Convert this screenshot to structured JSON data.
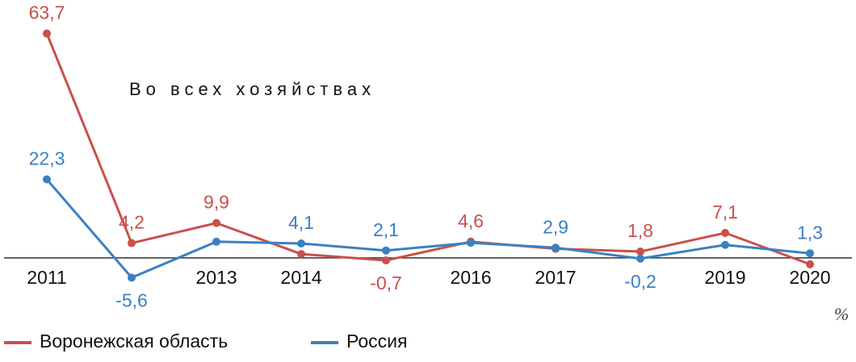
{
  "chart_data": {
    "type": "line",
    "annotation": "Во всех хозяйствах",
    "unit_label": "%",
    "categories": [
      "2011",
      null,
      "2013",
      "2014",
      null,
      "2016",
      "2017",
      null,
      "2019",
      "2020"
    ],
    "series": [
      {
        "name": "Воронежская область",
        "color": "#c9504b",
        "values": [
          63.7,
          4.2,
          9.9,
          1.1,
          -0.7,
          4.6,
          2.6,
          1.8,
          7.1,
          -1.8
        ],
        "value_labels": [
          "63,7",
          "4,2",
          "9,9",
          null,
          "-0,7",
          "4,6",
          null,
          "1,8",
          "7,1",
          null
        ]
      },
      {
        "name": "Россия",
        "color": "#3b80c2",
        "values": [
          22.3,
          -5.6,
          4.6,
          4.1,
          2.1,
          4.3,
          2.9,
          -0.2,
          3.7,
          1.3
        ],
        "value_labels": [
          "22,3",
          "-5,6",
          null,
          "4,1",
          "2,1",
          null,
          "2,9",
          "-0,2",
          null,
          "1,3"
        ]
      }
    ],
    "ylim": [
      -10,
      70
    ]
  }
}
